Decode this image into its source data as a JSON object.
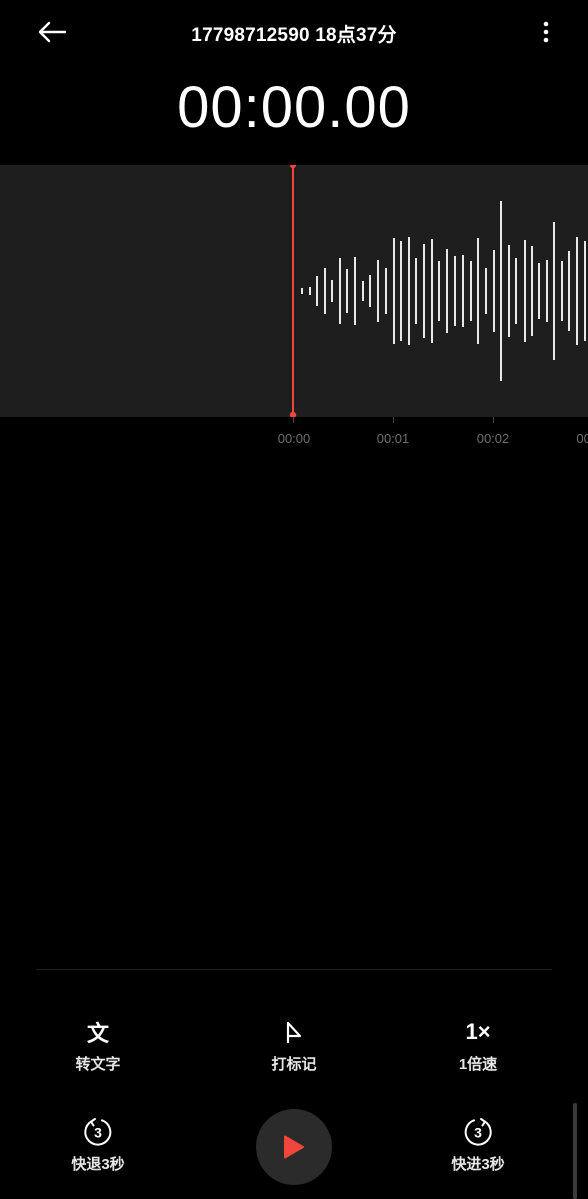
{
  "header": {
    "title": "17798712590 18点37分"
  },
  "player": {
    "elapsed": "00:00.00",
    "playhead_color": "#f0463c"
  },
  "timeline": {
    "ticks": [
      "00:00",
      "00:01",
      "00:02",
      "00:0"
    ]
  },
  "toolbar": {
    "transcribe_label": "转文字",
    "transcribe_icon_glyph": "文",
    "mark_label": "打标记",
    "speed_label": "1倍速",
    "speed_icon_text": "1×",
    "rewind_label": "快退3秒",
    "rewind_icon_digit": "3",
    "forward_label": "快进3秒",
    "forward_icon_digit": "3"
  },
  "colors": {
    "background": "#000000",
    "accent": "#f0463c"
  }
}
